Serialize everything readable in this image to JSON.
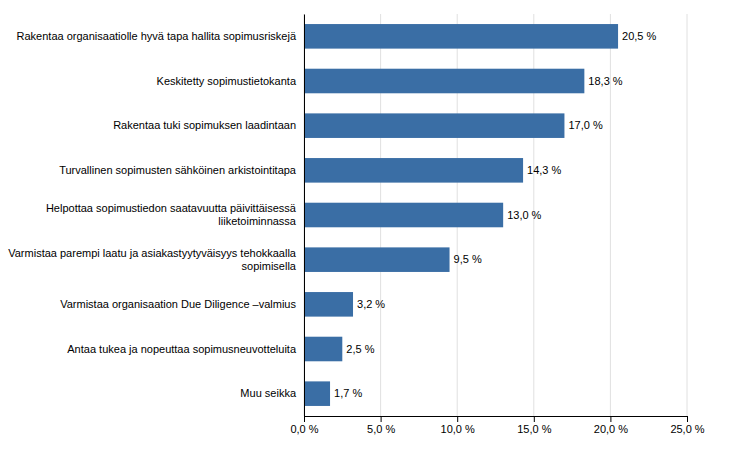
{
  "chart_data": {
    "type": "bar",
    "orientation": "horizontal",
    "categories": [
      "Muu seikka",
      "Antaa tukea ja nopeuttaa sopimusneuvotteluita",
      "Varmistaa organisaation Due Diligence –valmius",
      "Varmistaa parempi laatu ja asiakastyytyväisyys tehokkaalla\nsopimisella",
      "Helpottaa sopimustiedon saatavuutta päivittäisessä\nliiketoiminnassa",
      "Turvallinen sopimusten sähköinen arkistointitapa",
      "Rakentaa tuki sopimuksen laadintaan",
      "Keskitetty sopimustietokanta",
      "Rakentaa organisaatiolle hyvä tapa hallita sopimusriskejä"
    ],
    "values": [
      1.7,
      2.5,
      3.2,
      9.5,
      13.0,
      14.3,
      17.0,
      18.3,
      20.5
    ],
    "value_labels": [
      "1,7 %",
      "2,5 %",
      "3,2 %",
      "9,5 %",
      "13,0 %",
      "14,3 %",
      "17,0 %",
      "18,3 %",
      "20,5 %"
    ],
    "data_labels": true,
    "color": "#3A6EA5",
    "xlim": [
      0,
      25
    ],
    "xticks": [
      {
        "value": 0,
        "label": "0,0 %"
      },
      {
        "value": 5,
        "label": "5,0 %"
      },
      {
        "value": 10,
        "label": "10,0 %"
      },
      {
        "value": 15,
        "label": "15,0 %"
      },
      {
        "value": 20,
        "label": "20,0 %"
      },
      {
        "value": 25,
        "label": "25,0 %"
      }
    ],
    "grid": true
  }
}
